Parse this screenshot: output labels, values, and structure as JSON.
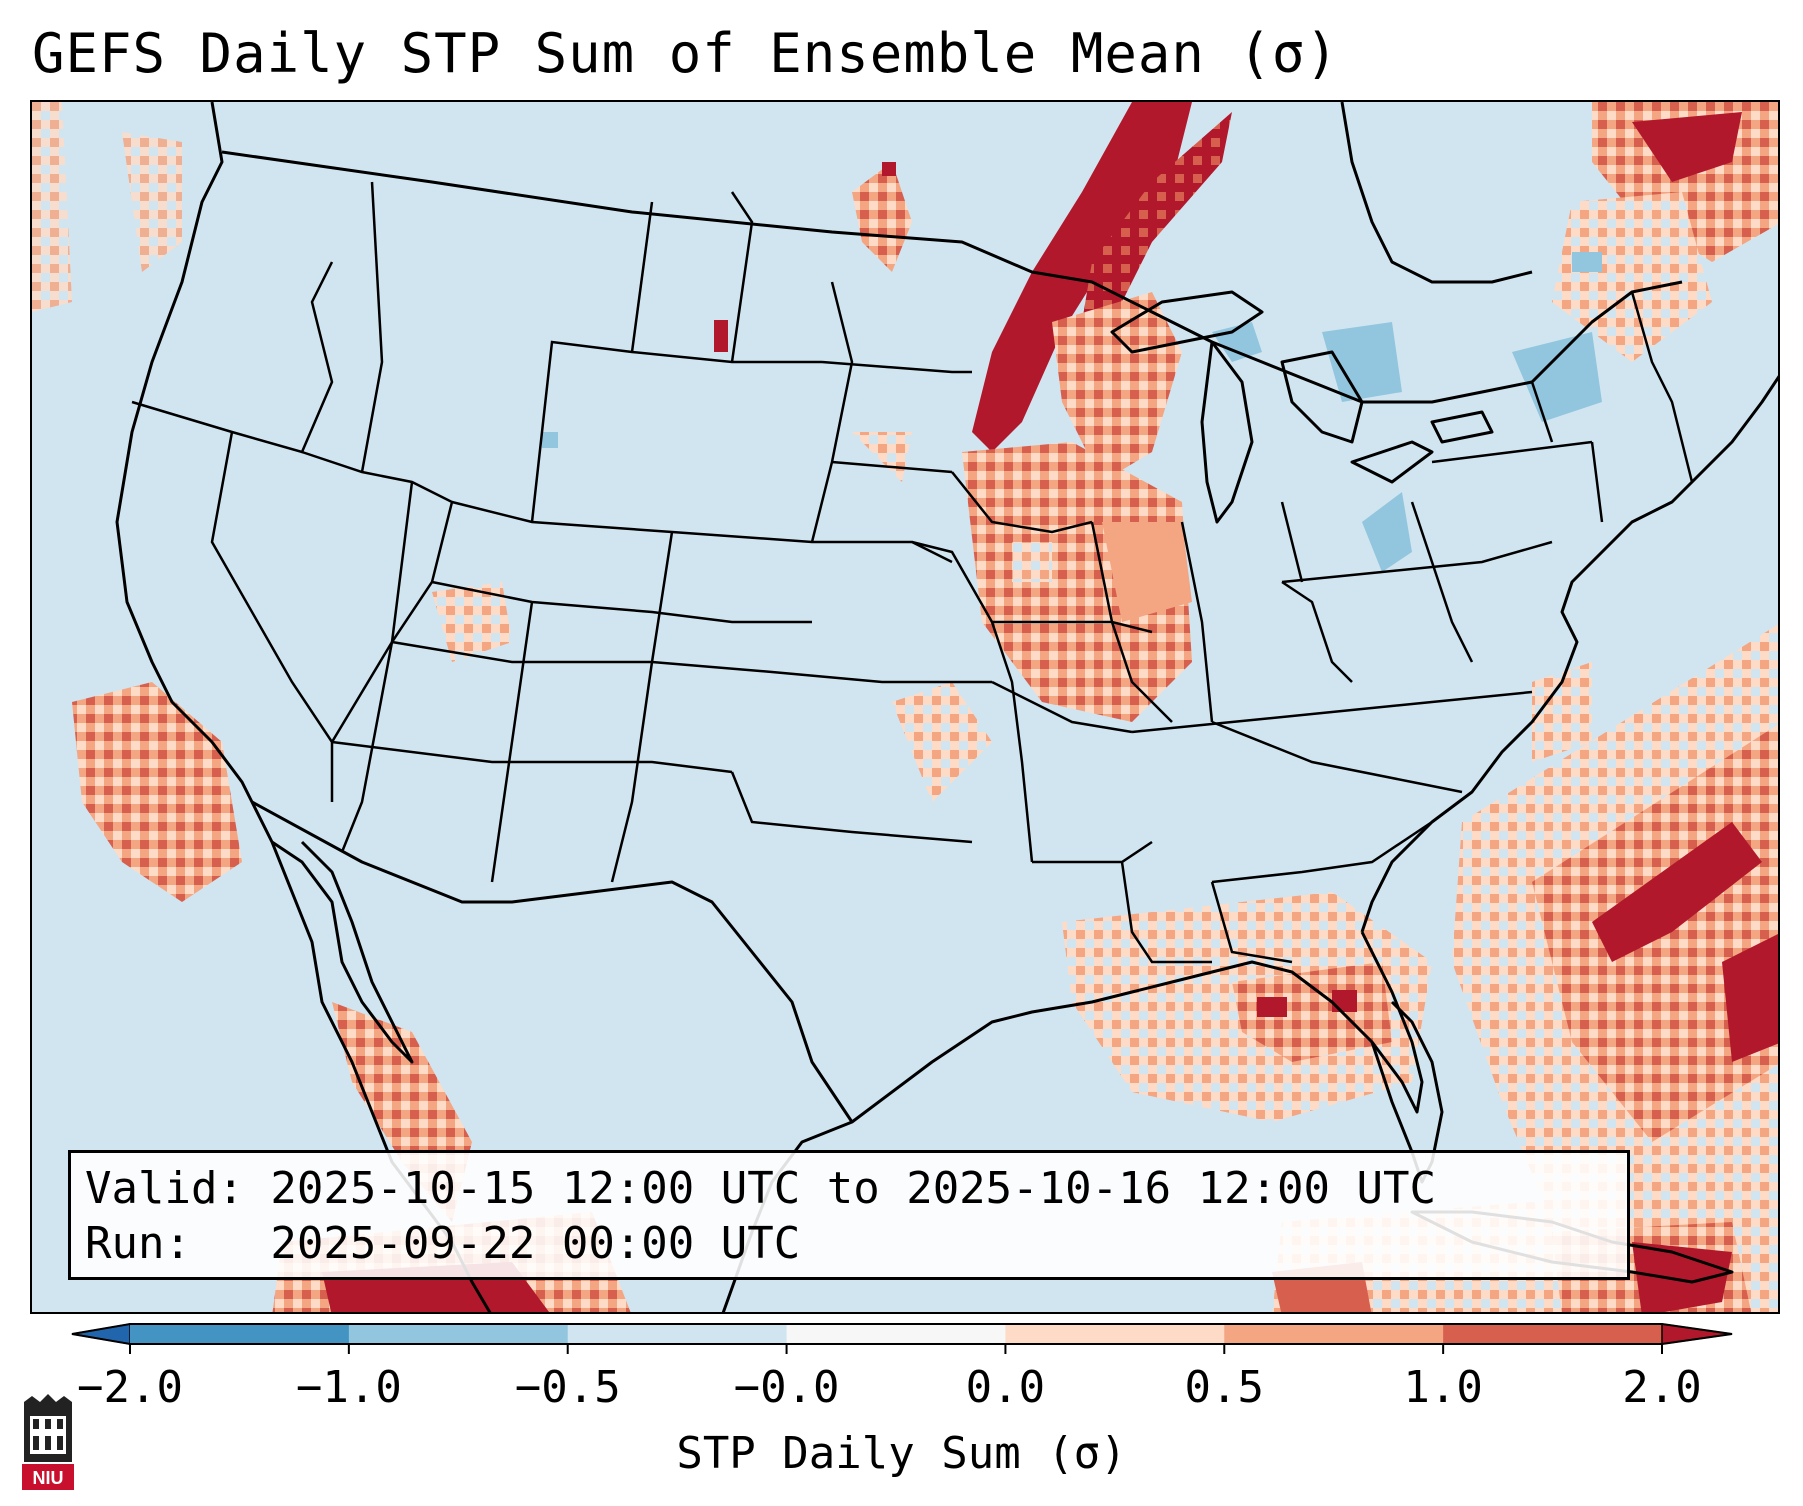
{
  "title": "GEFS Daily STP Sum of Ensemble Mean (σ)",
  "info": {
    "valid_line": "Valid: 2025-10-15 12:00 UTC to 2025-10-16 12:00 UTC",
    "run_line": "Run:   2025-09-22 00:00 UTC"
  },
  "colorbar": {
    "label": "STP Daily Sum (σ)",
    "ticks": [
      "−2.0",
      "−1.0",
      "−0.5",
      "−0.0",
      "0.0",
      "0.5",
      "1.0",
      "2.0"
    ],
    "colors": [
      "#4393c3",
      "#92c5de",
      "#d1e5f0",
      "#f7f7f7",
      "#fddbc7",
      "#f4a582",
      "#d6604d",
      "#b2182b"
    ],
    "extend_low_color": "#2166ac",
    "extend_high_color": "#b2182b"
  },
  "map": {
    "background_color": "#d1e5f0",
    "land_outline_color": "#000000",
    "regions": [
      {
        "name": "northern-minnesota-wisconsin-band",
        "level": "2.0"
      },
      {
        "name": "upper-michigan-wisconsin",
        "level": "1.0"
      },
      {
        "name": "illinois-iowa-missouri",
        "level": "0.5"
      },
      {
        "name": "north-dakota-minnesota-spot",
        "level": "1.0"
      },
      {
        "name": "eastern-canada-maine",
        "level": "2.0"
      },
      {
        "name": "gulf-of-mexico",
        "level": "1.0"
      },
      {
        "name": "western-atlantic-band",
        "level": "2.0"
      },
      {
        "name": "caribbean",
        "level": "2.0"
      },
      {
        "name": "eastern-pacific-baja",
        "level": "1.0"
      },
      {
        "name": "gulf-of-california",
        "level": "1.0"
      },
      {
        "name": "great-lakes-ontario-negative",
        "level": "−0.5"
      }
    ]
  },
  "logo": {
    "text": "NIU",
    "icon": "niu-logo-icon"
  }
}
